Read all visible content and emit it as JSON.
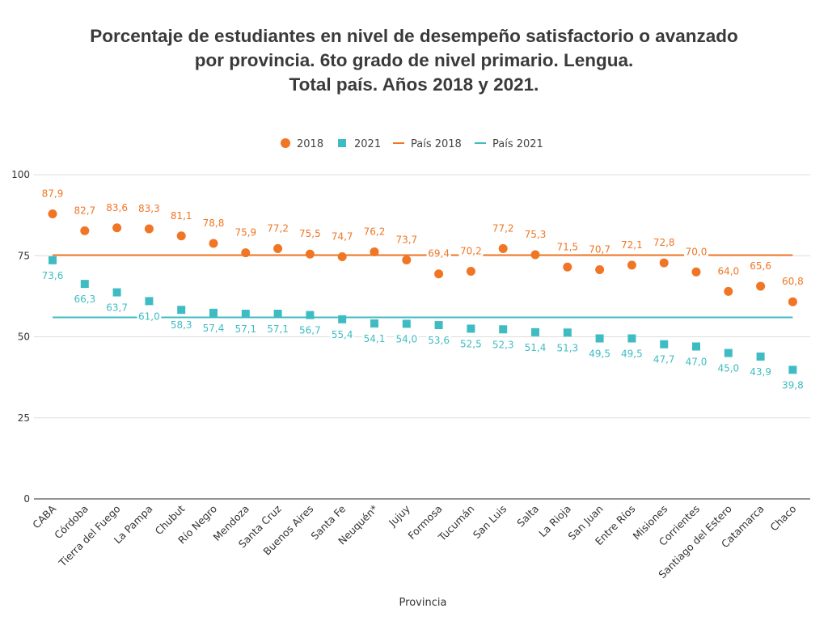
{
  "title": {
    "line1": "Porcentaje de estudiantes en nivel de desempeño satisfactorio o avanzado",
    "line2": "por provincia. 6to grado de nivel primario. Lengua.",
    "line3": "Total país. Años 2018 y 2021."
  },
  "chart_data": {
    "type": "scatter",
    "xlabel": "Provincia",
    "ylabel": "",
    "ylim": [
      0,
      100
    ],
    "yticks": [
      "0",
      "25",
      "50",
      "75",
      "100"
    ],
    "grid": true,
    "legend_position": "top-center",
    "categories": [
      "CABA",
      "Córdoba",
      "Tierra del Fuego",
      "La Pampa",
      "Chubut",
      "Río Negro",
      "Mendoza",
      "Santa Cruz",
      "Buenos Aires",
      "Santa Fe",
      "Neuquén*",
      "Jujuy",
      "Formosa",
      "Tucumán",
      "San Luis",
      "Salta",
      "La Rioja",
      "San Juan",
      "Entre Ríos",
      "Misiones",
      "Corrientes",
      "Santiago del Estero",
      "Catamarca",
      "Chaco"
    ],
    "series": [
      {
        "name": "2018",
        "marker": "circle",
        "color": "#f07625",
        "values": [
          87.9,
          82.7,
          83.6,
          83.3,
          81.1,
          78.8,
          75.9,
          77.2,
          75.5,
          74.7,
          76.2,
          73.7,
          69.4,
          70.2,
          77.2,
          75.3,
          71.5,
          70.7,
          72.1,
          72.8,
          70.0,
          64.0,
          65.6,
          60.8
        ],
        "labels": [
          "87,9",
          "82,7",
          "83,6",
          "83,3",
          "81,1",
          "78,8",
          "75,9",
          "77,2",
          "75,5",
          "74,7",
          "76,2",
          "73,7",
          "69,4",
          "70,2",
          "77,2",
          "75,3",
          "71,5",
          "70,7",
          "72,1",
          "72,8",
          "70,0",
          "64,0",
          "65,6",
          "60,8"
        ]
      },
      {
        "name": "2021",
        "marker": "square",
        "color": "#3fbcc3",
        "values": [
          73.6,
          66.3,
          63.7,
          61.0,
          58.3,
          57.4,
          57.1,
          57.1,
          56.7,
          55.4,
          54.1,
          54.0,
          53.6,
          52.5,
          52.3,
          51.4,
          51.3,
          49.5,
          49.5,
          47.7,
          47.0,
          45.0,
          43.9,
          39.8
        ],
        "labels": [
          "73,6",
          "66,3",
          "63,7",
          "61,0",
          "58,3",
          "57,4",
          "57,1",
          "57,1",
          "56,7",
          "55,4",
          "54,1",
          "54,0",
          "53,6",
          "52,5",
          "52,3",
          "51,4",
          "51,3",
          "49,5",
          "49,5",
          "47,7",
          "47,0",
          "45,0",
          "43,9",
          "39,8"
        ]
      }
    ],
    "reference_lines": [
      {
        "name": "País 2018",
        "value": 75.2,
        "color": "#f07625"
      },
      {
        "name": "País 2021",
        "value": 56.0,
        "color": "#3fbcc3"
      }
    ]
  }
}
